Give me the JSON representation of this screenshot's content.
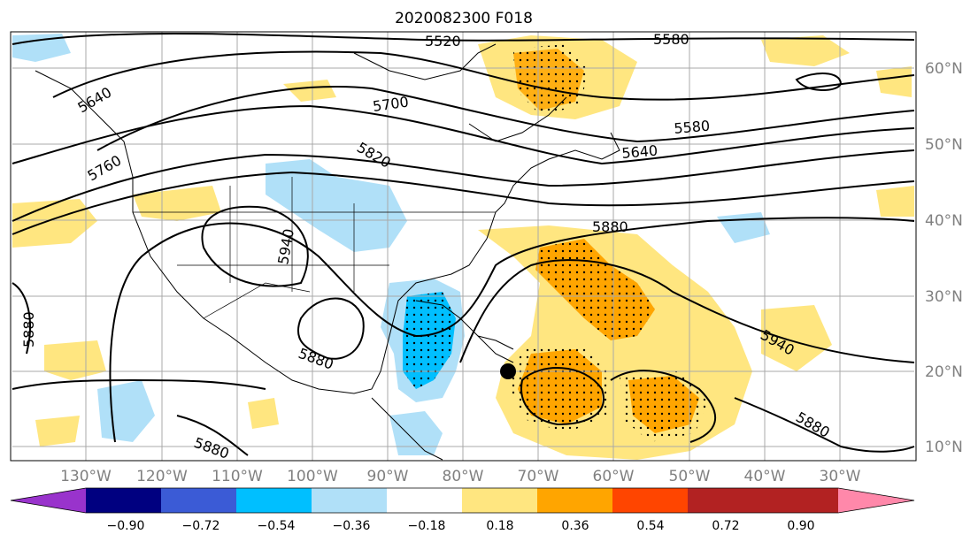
{
  "title": "2020082300 F018",
  "axes": {
    "lon_labels": [
      "130°W",
      "120°W",
      "110°W",
      "100°W",
      "90°W",
      "80°W",
      "70°W",
      "60°W",
      "50°W",
      "40°W",
      "30°W"
    ],
    "lat_labels": [
      "60°N",
      "50°N",
      "40°N",
      "30°N",
      "20°N",
      "10°N"
    ]
  },
  "contour_labels": [
    "5520",
    "5580",
    "5640",
    "5700",
    "5760",
    "5820",
    "5580",
    "5640",
    "5880",
    "5940",
    "5880",
    "5940",
    "5880",
    "5880",
    "5880"
  ],
  "colorbar": {
    "colors": [
      "#9933cc",
      "#000080",
      "#3b5bd6",
      "#00bfff",
      "#b0e0f8",
      "#ffffff",
      "#ffe680",
      "#ffa500",
      "#ff4500",
      "#b22222",
      "#ff88aa"
    ],
    "tick_labels": [
      "−0.90",
      "−0.72",
      "−0.54",
      "−0.36",
      "−0.18",
      "0.18",
      "0.36",
      "0.54",
      "0.72",
      "0.90"
    ]
  },
  "storm_marker": "black-dot"
}
